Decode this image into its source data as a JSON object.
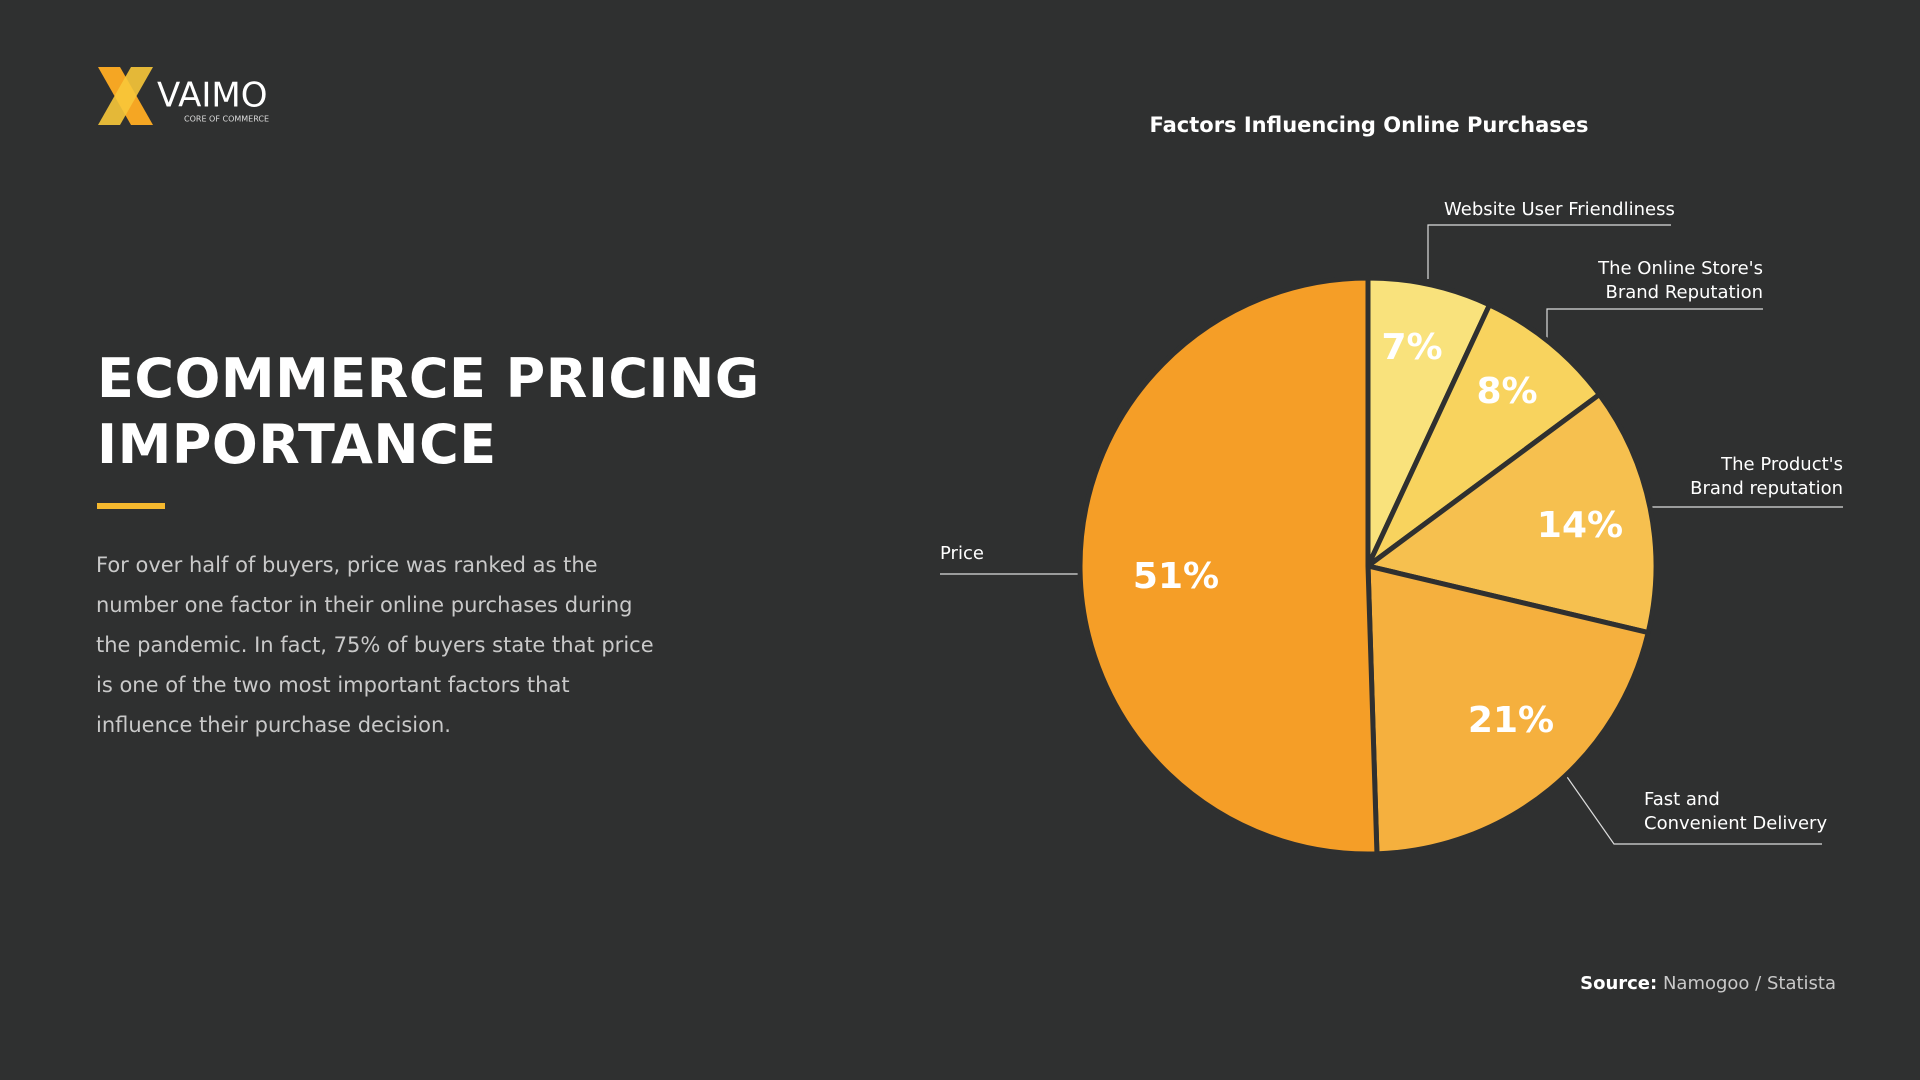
{
  "logo": {
    "name": "VAIMO",
    "tagline": "CORE OF COMMERCE"
  },
  "heading": [
    "ECOMMERCE PRICING",
    "IMPORTANCE"
  ],
  "paragraph": "For over half of buyers, price was ranked as the number one factor in their online purchases during the pandemic. In fact, 75% of buyers state that price is one of the two most important factors that influence their purchase decision.",
  "source": {
    "label": "Source:",
    "text": "Namogoo / Statista"
  },
  "chart_data": {
    "type": "pie",
    "title": "Factors Influencing Online Purchases",
    "categories": [
      "Website User Friendliness",
      "The Online Store's\nBrand Reputation",
      "The Product's\nBrand reputation",
      "Fast and\nConvenient Delivery",
      "Price"
    ],
    "values": [
      7,
      8,
      14,
      21,
      51
    ],
    "value_labels": [
      "7%",
      "8%",
      "14%",
      "21%",
      "51%"
    ],
    "colors": [
      "#f9e27c",
      "#f8d35e",
      "#f6c04f",
      "#f5b03e",
      "#f59e27"
    ]
  }
}
